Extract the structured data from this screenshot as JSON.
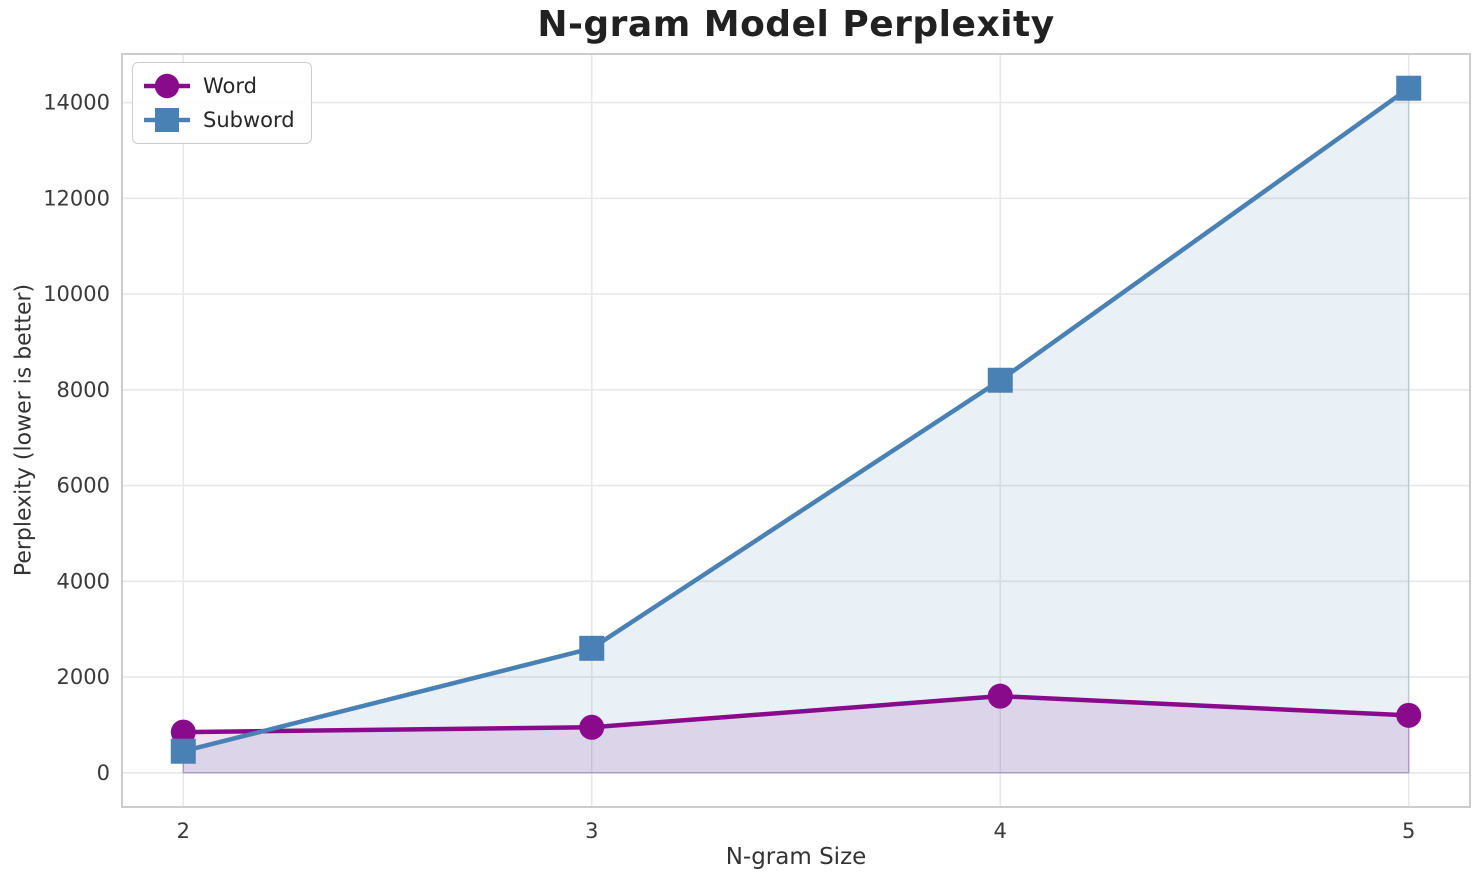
{
  "chart_data": {
    "type": "line",
    "title": "N-gram Model Perplexity",
    "xlabel": "N-gram Size",
    "ylabel": "Perplexity (lower is better)",
    "x": [
      2,
      3,
      4,
      5
    ],
    "series": [
      {
        "name": "Word",
        "color": "#8A0A8C",
        "marker": "circle",
        "values": [
          850,
          950,
          1600,
          1200
        ],
        "fill_to_zero": true
      },
      {
        "name": "Subword",
        "color": "#4A81B4",
        "marker": "square",
        "values": [
          450,
          2600,
          8200,
          14300
        ],
        "fill_to_zero": true
      }
    ],
    "xticks": [
      2,
      3,
      4,
      5
    ],
    "yticks": [
      0,
      2000,
      4000,
      6000,
      8000,
      10000,
      12000,
      14000
    ],
    "xlim": [
      1.85,
      5.15
    ],
    "ylim": [
      -715,
      15015
    ],
    "grid": true,
    "legend_position": "upper left",
    "fill_alpha": 0.12,
    "line_width": 4.5,
    "marker_size": 25,
    "colors": {
      "background": "#ffffff",
      "grid": "#e8e8e8",
      "spine": "#cccccc",
      "tick_label": "#3a3a3a",
      "title": "#212121",
      "axis_label": "#333333",
      "legend_border": "#cccccc",
      "legend_text": "#262626"
    }
  }
}
